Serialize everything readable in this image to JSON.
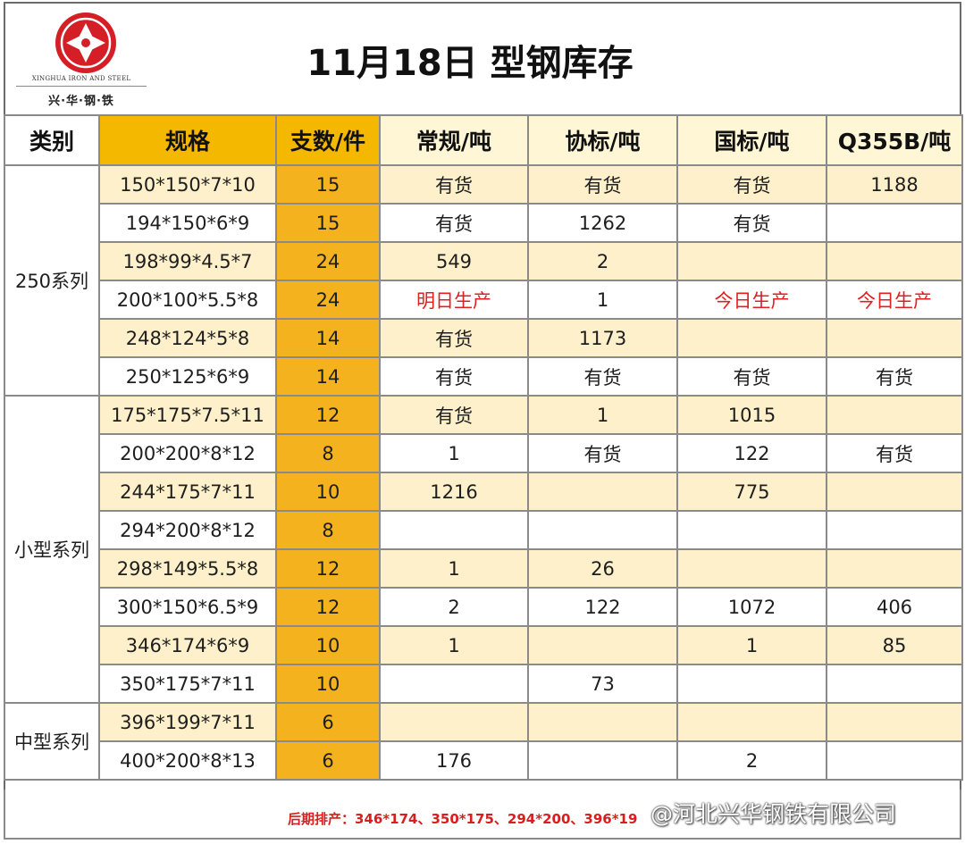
{
  "header": {
    "logo_en": "XINGHUA IRON AND STEEL",
    "logo_cn": "兴·华·钢·铁",
    "title": "11月18日 型钢库存"
  },
  "columns": [
    "类别",
    "规格",
    "支数/件",
    "常规/吨",
    "协标/吨",
    "国标/吨",
    "Q355B/吨"
  ],
  "categories": [
    {
      "label": "250系列",
      "rows": [
        {
          "spec": "150*150*7*10",
          "pcs": "15",
          "regular": "有货",
          "assoc": "有货",
          "national": "有货",
          "q355b": "1188"
        },
        {
          "spec": "194*150*6*9",
          "pcs": "15",
          "regular": "有货",
          "assoc": "1262",
          "national": "有货",
          "q355b": ""
        },
        {
          "spec": "198*99*4.5*7",
          "pcs": "24",
          "regular": "549",
          "assoc": "2",
          "national": "",
          "q355b": ""
        },
        {
          "spec": "200*100*5.5*8",
          "pcs": "24",
          "regular": "明日生产",
          "assoc": "1",
          "national": "今日生产",
          "q355b": "今日生产"
        },
        {
          "spec": "248*124*5*8",
          "pcs": "14",
          "regular": "有货",
          "assoc": "1173",
          "national": "",
          "q355b": ""
        },
        {
          "spec": "250*125*6*9",
          "pcs": "14",
          "regular": "有货",
          "assoc": "有货",
          "national": "有货",
          "q355b": "有货"
        }
      ]
    },
    {
      "label": "小型系列",
      "rows": [
        {
          "spec": "175*175*7.5*11",
          "pcs": "12",
          "regular": "有货",
          "assoc": "1",
          "national": "1015",
          "q355b": ""
        },
        {
          "spec": "200*200*8*12",
          "pcs": "8",
          "regular": "1",
          "assoc": "有货",
          "national": "122",
          "q355b": "有货"
        },
        {
          "spec": "244*175*7*11",
          "pcs": "10",
          "regular": "1216",
          "assoc": "",
          "national": "775",
          "q355b": ""
        },
        {
          "spec": "294*200*8*12",
          "pcs": "8",
          "regular": "",
          "assoc": "",
          "national": "",
          "q355b": ""
        },
        {
          "spec": "298*149*5.5*8",
          "pcs": "12",
          "regular": "1",
          "assoc": "26",
          "national": "",
          "q355b": ""
        },
        {
          "spec": "300*150*6.5*9",
          "pcs": "12",
          "regular": "2",
          "assoc": "122",
          "national": "1072",
          "q355b": "406"
        },
        {
          "spec": "346*174*6*9",
          "pcs": "10",
          "regular": "1",
          "assoc": "",
          "national": "1",
          "q355b": "85"
        },
        {
          "spec": "350*175*7*11",
          "pcs": "10",
          "regular": "",
          "assoc": "73",
          "national": "",
          "q355b": ""
        }
      ]
    },
    {
      "label": "中型系列",
      "rows": [
        {
          "spec": "396*199*7*11",
          "pcs": "6",
          "regular": "",
          "assoc": "",
          "national": "",
          "q355b": ""
        },
        {
          "spec": "400*200*8*13",
          "pcs": "6",
          "regular": "176",
          "assoc": "",
          "national": "2",
          "q355b": ""
        }
      ]
    }
  ],
  "highlight_values": [
    "明日生产",
    "今日生产"
  ],
  "colors": {
    "accent": "#f4b800",
    "pcs_fill": "#f5b21f",
    "row_tint": "#fdf0cb",
    "alert": "#e02020",
    "logo_red": "#d41f26"
  },
  "footer": {
    "note": "后期排产：346*174、350*175、294*200、396*19",
    "watermark": "@河北兴华钢铁有限公司"
  }
}
